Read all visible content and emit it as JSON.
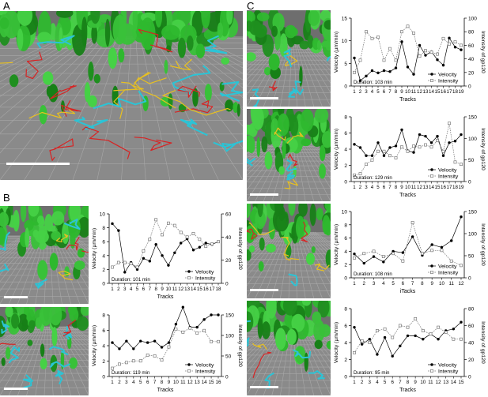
{
  "panel_labels": {
    "A": "A",
    "B": "B",
    "C": "C"
  },
  "axis_text": {
    "left_label": "Velocity (µm/min)",
    "right_label": "Intensity of gp120",
    "x_label": "Tracks",
    "x_label_c3": "iTacks",
    "legend_velocity": "Velocity",
    "legend_intensity": "Intensity"
  },
  "chart_data": [
    {
      "id": "B1",
      "type": "line",
      "duration": "Duration: 101 min",
      "categories": [
        "1",
        "2",
        "3",
        "4",
        "5",
        "6",
        "7",
        "8",
        "9",
        "10",
        "11",
        "12",
        "13",
        "14",
        "15",
        "16",
        "17",
        "18"
      ],
      "ylim": [
        0,
        10
      ],
      "yticks": [
        0,
        2,
        4,
        6,
        8,
        10
      ],
      "y2lim": [
        0,
        60
      ],
      "y2ticks": [
        0,
        20,
        40,
        60
      ],
      "series": [
        {
          "name": "Velocity",
          "axis": "left",
          "values": [
            8.6,
            7.6,
            1.6,
            3.0,
            2.0,
            3.6,
            3.2,
            5.6,
            4.0,
            2.6,
            4.4,
            5.8,
            6.4,
            4.8,
            5.2,
            5.8,
            5.6,
            6.0
          ]
        },
        {
          "name": "Intensity",
          "axis": "right",
          "values": [
            14,
            18,
            18,
            17,
            14,
            28,
            38,
            55,
            42,
            52,
            50,
            44,
            40,
            43,
            38,
            32,
            34,
            36
          ]
        }
      ]
    },
    {
      "id": "B2",
      "type": "line",
      "duration": "Duration: 119 min",
      "categories": [
        "1",
        "2",
        "3",
        "4",
        "5",
        "6",
        "7",
        "8",
        "9",
        "10",
        "11",
        "12",
        "13",
        "14",
        "15",
        "16"
      ],
      "ylim": [
        0,
        8
      ],
      "yticks": [
        0,
        2,
        4,
        6,
        8
      ],
      "y2lim": [
        0,
        150
      ],
      "y2ticks": [
        0,
        50,
        100,
        150
      ],
      "series": [
        {
          "name": "Velocity",
          "axis": "left",
          "values": [
            4.4,
            3.6,
            4.6,
            3.6,
            4.6,
            4.4,
            4.6,
            3.8,
            4.4,
            6.8,
            9.0,
            6.4,
            6.4,
            7.4,
            8.0,
            8.0
          ]
        },
        {
          "name": "Intensity",
          "axis": "right",
          "values": [
            20,
            30,
            34,
            38,
            38,
            52,
            50,
            40,
            72,
            115,
            108,
            118,
            106,
            112,
            85,
            85
          ]
        }
      ]
    },
    {
      "id": "C1",
      "type": "line",
      "duration": "Duration: 103 min",
      "categories": [
        "1",
        "2",
        "3",
        "4",
        "5",
        "6",
        "7",
        "8",
        "9",
        "10",
        "11",
        "12",
        "13",
        "14",
        "15",
        "16",
        "17",
        "18",
        "19"
      ],
      "ylim": [
        0,
        15
      ],
      "yticks": [
        0,
        5,
        10,
        15
      ],
      "y2lim": [
        0,
        100
      ],
      "y2ticks": [
        0,
        20,
        40,
        60,
        80,
        100
      ],
      "series": [
        {
          "name": "Velocity",
          "axis": "left",
          "values": [
            6.2,
            1.2,
            2.2,
            3.4,
            2.9,
            3.4,
            3.2,
            4.0,
            9.8,
            4.2,
            2.6,
            9.0,
            6.8,
            7.6,
            5.8,
            4.6,
            10.6,
            8.6,
            8.0
          ]
        },
        {
          "name": "Intensity",
          "axis": "right",
          "values": [
            20,
            38,
            80,
            70,
            72,
            38,
            55,
            38,
            80,
            88,
            78,
            44,
            52,
            50,
            47,
            70,
            62,
            65,
            60
          ]
        }
      ]
    },
    {
      "id": "C2",
      "type": "line",
      "duration": "Duration: 129 min",
      "categories": [
        "1",
        "2",
        "3",
        "4",
        "5",
        "6",
        "7",
        "8",
        "9",
        "10",
        "11",
        "12",
        "13",
        "14",
        "15",
        "16",
        "17",
        "18",
        "19"
      ],
      "ylim": [
        0,
        8
      ],
      "yticks": [
        0,
        2,
        4,
        6,
        8
      ],
      "y2lim": [
        0,
        150
      ],
      "y2ticks": [
        0,
        50,
        100,
        150
      ],
      "series": [
        {
          "name": "Velocity",
          "axis": "left",
          "values": [
            4.6,
            4.2,
            3.2,
            3.2,
            4.8,
            3.2,
            4.2,
            4.4,
            6.4,
            3.8,
            3.6,
            5.8,
            5.6,
            4.8,
            5.6,
            3.2,
            4.8,
            5.0,
            5.8
          ]
        },
        {
          "name": "Intensity",
          "axis": "right",
          "values": [
            15,
            18,
            40,
            50,
            70,
            70,
            60,
            55,
            80,
            70,
            82,
            80,
            85,
            80,
            95,
            70,
            135,
            45,
            40
          ]
        }
      ]
    },
    {
      "id": "C3",
      "type": "line",
      "duration": "Duration: 108 min",
      "categories": [
        "1",
        "2",
        "3",
        "4",
        "5",
        "6",
        "7",
        "8",
        "9",
        "10",
        "11",
        "12"
      ],
      "ylim": [
        0,
        10
      ],
      "yticks": [
        0,
        2,
        4,
        6,
        8,
        10
      ],
      "y2lim": [
        0,
        150
      ],
      "y2ticks": [
        0,
        50,
        100,
        150
      ],
      "series": [
        {
          "name": "Velocity",
          "axis": "left",
          "values": [
            3.6,
            2.2,
            3.2,
            2.4,
            4.0,
            3.8,
            6.2,
            3.4,
            5.0,
            4.6,
            5.6,
            9.2
          ]
        },
        {
          "name": "Intensity",
          "axis": "right",
          "values": [
            45,
            55,
            60,
            48,
            55,
            38,
            125,
            55,
            62,
            62,
            38,
            28
          ]
        }
      ]
    },
    {
      "id": "C4",
      "type": "line",
      "duration": "Duration: 95 min",
      "categories": [
        "1",
        "2",
        "3",
        "4",
        "5",
        "6",
        "7",
        "8",
        "9",
        "10",
        "11",
        "12",
        "13",
        "14",
        "15"
      ],
      "ylim": [
        0,
        8
      ],
      "yticks": [
        0,
        2,
        4,
        6,
        8
      ],
      "y2lim": [
        0,
        80
      ],
      "y2ticks": [
        0,
        20,
        40,
        60,
        80
      ],
      "series": [
        {
          "name": "Velocity",
          "axis": "left",
          "values": [
            5.8,
            3.8,
            4.4,
            2.6,
            4.6,
            2.4,
            3.6,
            4.8,
            4.8,
            4.4,
            5.0,
            4.4,
            5.4,
            5.6,
            6.4
          ]
        },
        {
          "name": "Intensity",
          "axis": "right",
          "values": [
            28,
            42,
            40,
            54,
            56,
            46,
            60,
            58,
            68,
            54,
            50,
            58,
            52,
            44,
            44
          ]
        }
      ]
    }
  ]
}
